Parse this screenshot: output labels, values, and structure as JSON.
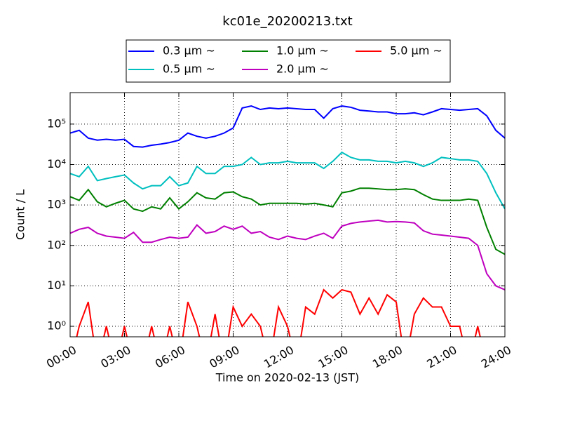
{
  "chart_data": {
    "type": "line",
    "title": "kc01e_20200213.txt",
    "xlabel": "Time on 2020-02-13 (JST)",
    "ylabel": "Count / L",
    "log_y": true,
    "grid": true,
    "legend": "upper center",
    "x": [
      0,
      0.5,
      1,
      1.5,
      2,
      2.5,
      3,
      3.5,
      4,
      4.5,
      5,
      5.5,
      6,
      6.5,
      7,
      7.5,
      8,
      8.5,
      9,
      9.5,
      10,
      10.5,
      11,
      11.5,
      12,
      12.5,
      13,
      13.5,
      14,
      14.5,
      15,
      15.5,
      16,
      16.5,
      17,
      17.5,
      18,
      18.5,
      19,
      19.5,
      20,
      20.5,
      21,
      21.5,
      22,
      22.5,
      23,
      23.5,
      24
    ],
    "xlim": [
      0,
      24
    ],
    "xticks": [
      {
        "value": 0,
        "label": "00:00"
      },
      {
        "value": 3,
        "label": "03:00"
      },
      {
        "value": 6,
        "label": "06:00"
      },
      {
        "value": 9,
        "label": "09:00"
      },
      {
        "value": 12,
        "label": "12:00"
      },
      {
        "value": 15,
        "label": "15:00"
      },
      {
        "value": 18,
        "label": "18:00"
      },
      {
        "value": 21,
        "label": "21:00"
      },
      {
        "value": 24,
        "label": "24:00"
      }
    ],
    "ylim": [
      0.55,
      600000
    ],
    "yticks": [
      {
        "value": 1,
        "label": "10⁰"
      },
      {
        "value": 10,
        "label": "10¹"
      },
      {
        "value": 100,
        "label": "10²"
      },
      {
        "value": 1000,
        "label": "10³"
      },
      {
        "value": 10000,
        "label": "10⁴"
      },
      {
        "value": 100000,
        "label": "10⁵"
      }
    ],
    "series": [
      {
        "name": "0.3 μm ~",
        "color": "#0000ff",
        "values": [
          60000,
          70000,
          45000,
          40000,
          42000,
          40000,
          42000,
          28000,
          27000,
          30000,
          32000,
          35000,
          40000,
          60000,
          50000,
          45000,
          50000,
          60000,
          80000,
          250000,
          280000,
          230000,
          250000,
          240000,
          250000,
          240000,
          230000,
          230000,
          140000,
          240000,
          280000,
          260000,
          220000,
          210000,
          200000,
          200000,
          180000,
          180000,
          190000,
          170000,
          200000,
          240000,
          230000,
          220000,
          230000,
          240000,
          160000,
          70000,
          45000
        ]
      },
      {
        "name": "0.5 μm ~",
        "color": "#00bfbf",
        "values": [
          6000,
          5000,
          9000,
          4000,
          4500,
          5000,
          5500,
          3500,
          2500,
          3000,
          3000,
          5000,
          3000,
          3500,
          9000,
          6000,
          6000,
          9000,
          9000,
          10000,
          15000,
          10000,
          11000,
          11000,
          12000,
          11000,
          11000,
          11000,
          8000,
          12000,
          20000,
          15000,
          13000,
          13000,
          12000,
          12000,
          11000,
          12000,
          11000,
          9000,
          11000,
          15000,
          14000,
          13000,
          13000,
          12000,
          6000,
          2000,
          800
        ]
      },
      {
        "name": "1.0 μm ~",
        "color": "#008000",
        "values": [
          1600,
          1300,
          2400,
          1200,
          900,
          1100,
          1300,
          800,
          700,
          900,
          800,
          1500,
          800,
          1200,
          2000,
          1500,
          1400,
          2000,
          2100,
          1600,
          1400,
          1000,
          1100,
          1100,
          1100,
          1100,
          1050,
          1100,
          1000,
          900,
          2000,
          2200,
          2600,
          2600,
          2500,
          2400,
          2400,
          2500,
          2400,
          1800,
          1400,
          1300,
          1300,
          1300,
          1400,
          1300,
          280,
          80,
          60
        ]
      },
      {
        "name": "2.0 μm ~",
        "color": "#bf00bf",
        "values": [
          200,
          250,
          280,
          200,
          170,
          160,
          150,
          210,
          120,
          120,
          140,
          160,
          150,
          160,
          320,
          200,
          220,
          300,
          250,
          300,
          200,
          220,
          160,
          140,
          170,
          150,
          140,
          170,
          200,
          150,
          300,
          350,
          380,
          400,
          420,
          380,
          390,
          380,
          360,
          230,
          190,
          180,
          170,
          160,
          150,
          100,
          20,
          10,
          8
        ]
      },
      {
        "name": "5.0 μm ~",
        "color": "#ff0000",
        "values": [
          0,
          1,
          4,
          0,
          1,
          0,
          1,
          0,
          0,
          1,
          0,
          1,
          0,
          4,
          1,
          0,
          2,
          0,
          3,
          1,
          2,
          1,
          0,
          3,
          1,
          0,
          3,
          2,
          8,
          5,
          8,
          7,
          2,
          5,
          2,
          6,
          4,
          0,
          2,
          5,
          3,
          3,
          1,
          1,
          0,
          1,
          0,
          0,
          0
        ]
      }
    ]
  }
}
